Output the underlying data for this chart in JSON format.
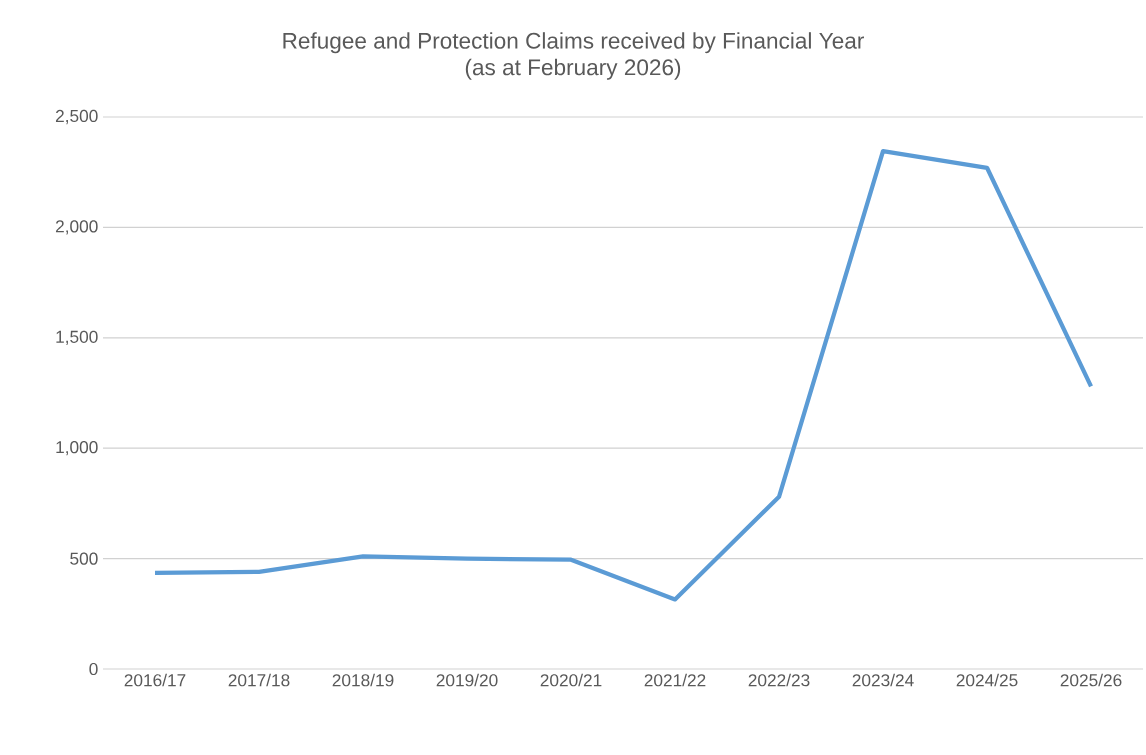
{
  "chart_data": {
    "type": "line",
    "title": "Refugee and Protection Claims received by Financial Year",
    "subtitle": "(as at February 2026)",
    "categories": [
      "2016/17",
      "2017/18",
      "2018/19",
      "2019/20",
      "2020/21",
      "2021/22",
      "2022/23",
      "2023/24",
      "2024/25",
      "2025/26"
    ],
    "series": [
      {
        "color": "#5b9bd5",
        "values": [
          435,
          440,
          510,
          500,
          495,
          315,
          780,
          2345,
          2270,
          1280
        ]
      }
    ],
    "ylim": [
      0,
      2500
    ],
    "yticks": [
      {
        "value": 0,
        "label": "0"
      },
      {
        "value": 500,
        "label": "500"
      },
      {
        "value": 1000,
        "label": "1,000"
      },
      {
        "value": 1500,
        "label": "1,500"
      },
      {
        "value": 2000,
        "label": "2,000"
      },
      {
        "value": 2500,
        "label": "2,500"
      }
    ],
    "grid": "y",
    "marker": "none",
    "line_style": "solid"
  }
}
